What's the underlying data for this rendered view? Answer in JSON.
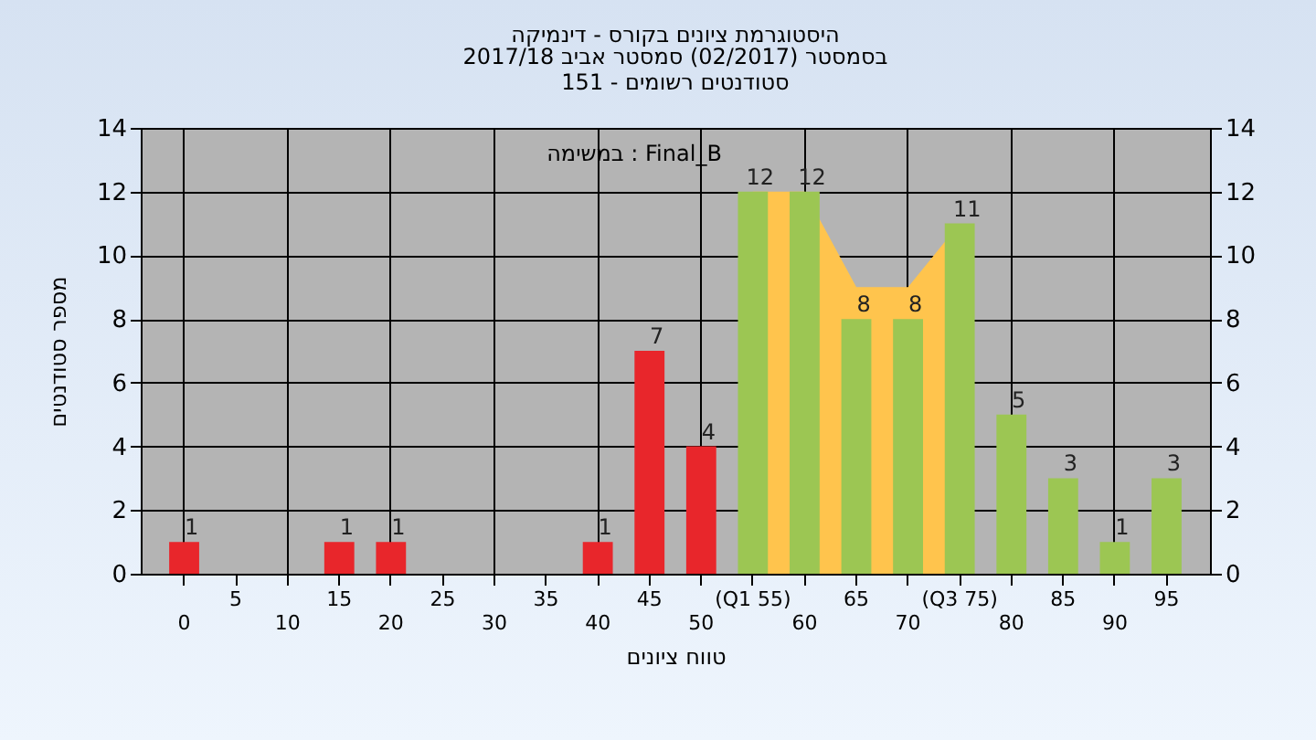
{
  "chart_data": {
    "type": "bar",
    "title": "היסטוגרמת ציונים בקורס - דינמיקה",
    "subtitle": "בסמסטר  (02/2017)  סמסטר אביב 2017/18\nסטודנטים רשומים - 151",
    "xlabel": "טווח ציונים",
    "ylabel": "מספר סטודנטים",
    "annotations": [
      "במשימה : Final_B"
    ],
    "categories": [
      "0",
      "5",
      "10",
      "15",
      "20",
      "25",
      "30",
      "35",
      "40",
      "45",
      "50",
      "(Q1 55)",
      "60",
      "65",
      "70",
      "(Q3 75)",
      "80",
      "85",
      "90",
      "95"
    ],
    "series": [
      {
        "type": "area",
        "color": "#ffc44d",
        "x": [
          "(Q1 55)",
          "60",
          "65",
          "70",
          "(Q3 75)"
        ],
        "values": [
          12,
          12,
          9,
          9,
          11
        ]
      },
      {
        "colors": [
          "#e8262b",
          "#e8262b",
          "#e8262b",
          "#e8262b",
          "#e8262b",
          "#e8262b",
          "#e8262b",
          "#e8262b",
          "#e8262b",
          "#e8262b",
          "#e8262b",
          "#9cc653",
          "#9cc653",
          "#9cc653",
          "#9cc653",
          "#9cc653",
          "#9cc653",
          "#9cc653",
          "#9cc653",
          "#9cc653"
        ],
        "values": [
          1,
          0,
          0,
          1,
          1,
          0,
          0,
          0,
          1,
          7,
          4,
          12,
          12,
          8,
          8,
          11,
          5,
          3,
          1,
          3
        ],
        "value_labels": [
          "1",
          null,
          null,
          "1",
          "1",
          null,
          null,
          null,
          "1",
          "7",
          "4",
          "12",
          "12",
          "8",
          "8",
          "11",
          "5",
          "3",
          "1",
          "3"
        ]
      }
    ],
    "ylim": [
      0,
      14
    ],
    "yticks": [
      0,
      2,
      4,
      6,
      8,
      10,
      12,
      14
    ],
    "y2lim": [
      0,
      14
    ],
    "y2ticks": [
      0,
      2,
      4,
      6,
      8,
      10,
      12,
      14
    ],
    "grid": true
  }
}
